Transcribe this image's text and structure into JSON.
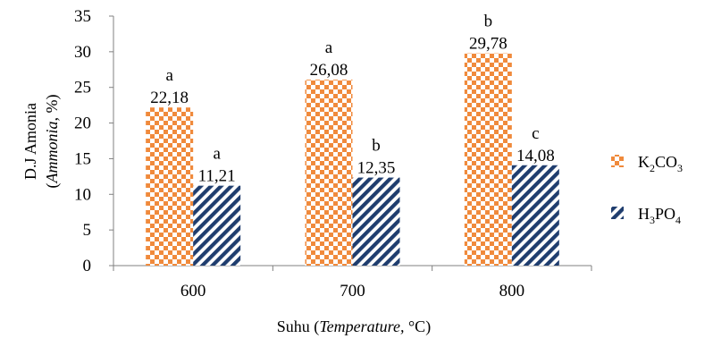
{
  "chart_data": {
    "type": "bar",
    "categories": [
      "600",
      "700",
      "800"
    ],
    "series": [
      {
        "name": "K2CO3",
        "name_parts": {
          "a": "K",
          "s1": "2",
          "b": "CO",
          "s2": "3",
          "c": ""
        },
        "values": [
          22.18,
          26.08,
          29.78
        ],
        "value_labels": [
          "22,18",
          "26,08",
          "29,78"
        ],
        "letters": [
          "a",
          "a",
          "b"
        ],
        "pattern": "checker",
        "color": "#F08A3C"
      },
      {
        "name": "H3PO4",
        "name_parts": {
          "a": "H",
          "s1": "3",
          "b": "PO",
          "s2": "4",
          "c": ""
        },
        "values": [
          11.21,
          12.35,
          14.08
        ],
        "value_labels": [
          "11,21",
          "12,35",
          "14,08"
        ],
        "letters": [
          "a",
          "b",
          "c"
        ],
        "pattern": "diagonal",
        "color": "#1F3D6E"
      }
    ],
    "ylim": [
      0,
      35
    ],
    "yticks": [
      "0",
      "5",
      "10",
      "15",
      "20",
      "25",
      "30",
      "35"
    ],
    "ylabel_line1": "D.J Amonia",
    "ylabel_line2_pre": "(",
    "ylabel_line2_italic": "Ammonia,",
    "ylabel_line2_post": " %)",
    "xlabel_pre": "Suhu (",
    "xlabel_italic": "Temperature,",
    "xlabel_post": " °C)",
    "legend_position": "right",
    "grid": false
  }
}
